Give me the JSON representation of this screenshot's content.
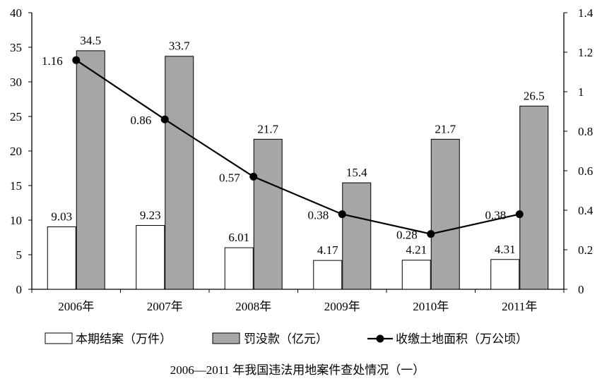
{
  "chart_data": {
    "type": "bar",
    "title": "2006—2011 年我国违法用地案件查处情况（一）",
    "categories": [
      "2006年",
      "2007年",
      "2008年",
      "2009年",
      "2010年",
      "2011年"
    ],
    "series": [
      {
        "name": "本期结案（万件）",
        "type": "bar",
        "axis": "left",
        "color": "#ffffff",
        "values": [
          9.03,
          9.23,
          6.01,
          4.17,
          4.21,
          4.31
        ],
        "labels": [
          "9.03",
          "9.23",
          "6.01",
          "4.17",
          "4.21",
          "4.31"
        ]
      },
      {
        "name": "罚没款（亿元）",
        "type": "bar",
        "axis": "left",
        "color": "#a6a6a6",
        "values": [
          34.5,
          33.7,
          21.7,
          15.4,
          21.7,
          26.5
        ],
        "labels": [
          "34.5",
          "33.7",
          "21.7",
          "15.4",
          "21.7",
          "26.5"
        ]
      },
      {
        "name": "收缴土地面积（万公顷）",
        "type": "line",
        "axis": "right",
        "color": "#000000",
        "values": [
          1.16,
          0.86,
          0.57,
          0.38,
          0.28,
          0.38
        ],
        "labels": [
          "1.16",
          "0.86",
          "0.57",
          "0.38",
          "0.28",
          "0.38"
        ]
      }
    ],
    "y_left": {
      "min": 0,
      "max": 40,
      "ticks": [
        "0",
        "5",
        "10",
        "15",
        "20",
        "25",
        "30",
        "35",
        "40"
      ]
    },
    "y_right": {
      "min": 0,
      "max": 1.4,
      "ticks": [
        "0",
        "0.2",
        "0.4",
        "0.6",
        "0.8",
        "1",
        "1.2",
        "1.4"
      ]
    },
    "grid": false,
    "legend_position": "bottom"
  }
}
